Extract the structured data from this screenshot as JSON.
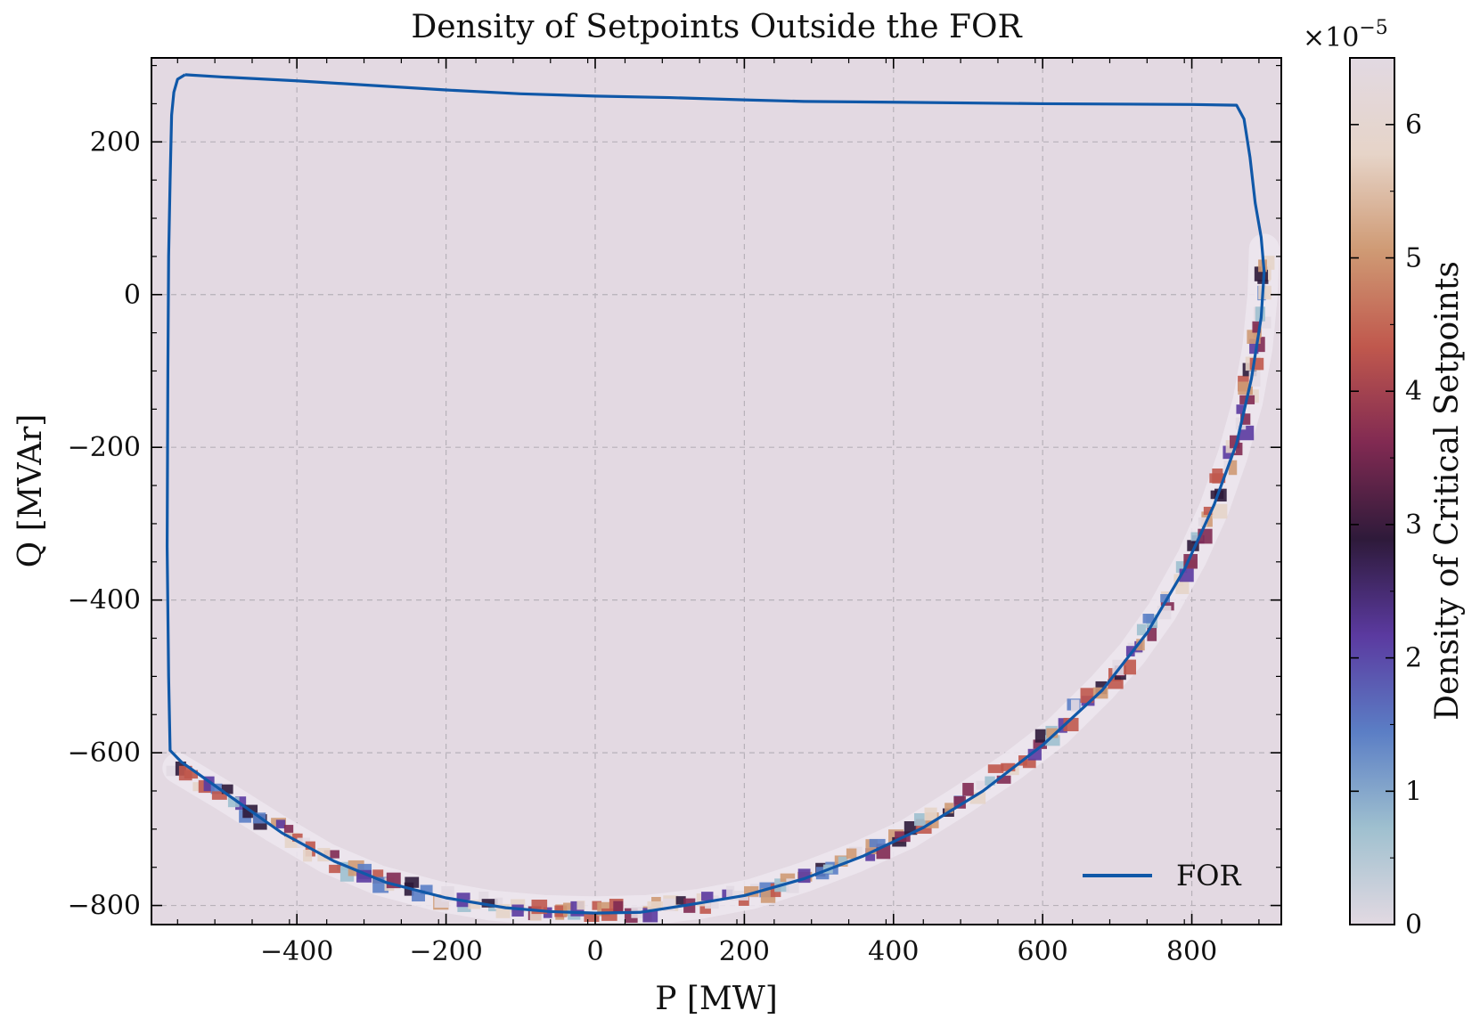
{
  "chart_data": {
    "type": "heatmap",
    "title": "Density of Setpoints Outside the FOR",
    "xlabel": "P [MW]",
    "ylabel": "Q [MVAr]",
    "xlim": [
      -595,
      920
    ],
    "ylim": [
      -825,
      310
    ],
    "xticks": [
      "−400",
      "−200",
      "0",
      "200",
      "400",
      "600",
      "800"
    ],
    "xtick_values": [
      -400,
      -200,
      0,
      200,
      400,
      600,
      800
    ],
    "yticks": [
      "−800",
      "−600",
      "−400",
      "−200",
      "0",
      "200"
    ],
    "ytick_values": [
      -800,
      -600,
      -400,
      -200,
      0,
      200
    ],
    "grid": true,
    "legend": {
      "placement": "lower-right",
      "entries": [
        "FOR"
      ]
    },
    "series": [
      {
        "name": "FOR",
        "color": "#1058a8",
        "points": [
          [
            -550,
            288
          ],
          [
            -560,
            282
          ],
          [
            -565,
            265
          ],
          [
            -568,
            235
          ],
          [
            -570,
            150
          ],
          [
            -572,
            50
          ],
          [
            -573,
            -100
          ],
          [
            -574,
            -330
          ],
          [
            -572,
            -500
          ],
          [
            -570,
            -597
          ],
          [
            -555,
            -612
          ],
          [
            -500,
            -650
          ],
          [
            -420,
            -705
          ],
          [
            -350,
            -742
          ],
          [
            -280,
            -770
          ],
          [
            -200,
            -790
          ],
          [
            -120,
            -803
          ],
          [
            -60,
            -808
          ],
          [
            0,
            -810
          ],
          [
            60,
            -809
          ],
          [
            120,
            -800
          ],
          [
            200,
            -787
          ],
          [
            280,
            -765
          ],
          [
            360,
            -735
          ],
          [
            440,
            -698
          ],
          [
            520,
            -650
          ],
          [
            600,
            -590
          ],
          [
            680,
            -518
          ],
          [
            740,
            -443
          ],
          [
            790,
            -360
          ],
          [
            830,
            -275
          ],
          [
            860,
            -195
          ],
          [
            880,
            -110
          ],
          [
            893,
            -30
          ],
          [
            897,
            30
          ],
          [
            893,
            75
          ],
          [
            885,
            120
          ],
          [
            878,
            180
          ],
          [
            870,
            230
          ],
          [
            860,
            248
          ],
          [
            800,
            249
          ],
          [
            600,
            250
          ],
          [
            400,
            252
          ],
          [
            280,
            253
          ],
          [
            200,
            255
          ],
          [
            100,
            258
          ],
          [
            0,
            260
          ],
          [
            -100,
            263
          ],
          [
            -200,
            268
          ],
          [
            -300,
            274
          ],
          [
            -400,
            280
          ],
          [
            -500,
            285
          ],
          [
            -550,
            288
          ]
        ]
      }
    ],
    "density_band": {
      "description_source": "hexbin density along the lower FOR boundary",
      "points": [
        [
          -560,
          -620
        ],
        [
          -500,
          -655
        ],
        [
          -430,
          -698
        ],
        [
          -360,
          -738
        ],
        [
          -290,
          -767
        ],
        [
          -210,
          -788
        ],
        [
          -140,
          -800
        ],
        [
          -70,
          -806
        ],
        [
          0,
          -808
        ],
        [
          70,
          -806
        ],
        [
          140,
          -798
        ],
        [
          210,
          -785
        ],
        [
          280,
          -763
        ],
        [
          350,
          -737
        ],
        [
          420,
          -706
        ],
        [
          490,
          -663
        ],
        [
          560,
          -617
        ],
        [
          620,
          -572
        ],
        [
          680,
          -514
        ],
        [
          720,
          -470
        ],
        [
          760,
          -415
        ],
        [
          800,
          -345
        ],
        [
          830,
          -280
        ],
        [
          855,
          -210
        ],
        [
          875,
          -140
        ],
        [
          888,
          -70
        ],
        [
          895,
          0
        ],
        [
          897,
          60
        ]
      ]
    },
    "colorbar": {
      "label": "Density of Critical Setpoints",
      "exponent_label": "×10",
      "exponent": "−5",
      "range": [
        0,
        6.5
      ],
      "ticks": [
        "0",
        "1",
        "2",
        "3",
        "4",
        "5",
        "6"
      ],
      "tick_values": [
        0,
        1,
        2,
        3,
        4,
        5,
        6
      ],
      "colormap": [
        "#e2d9e2",
        "#9fc0cf",
        "#5b7ec5",
        "#5b3aa0",
        "#2e1a3a",
        "#812a52",
        "#c0584d",
        "#cf9a74",
        "#e6d4c8",
        "#e2d9e2"
      ]
    },
    "background_color": "#e3d9e2"
  }
}
